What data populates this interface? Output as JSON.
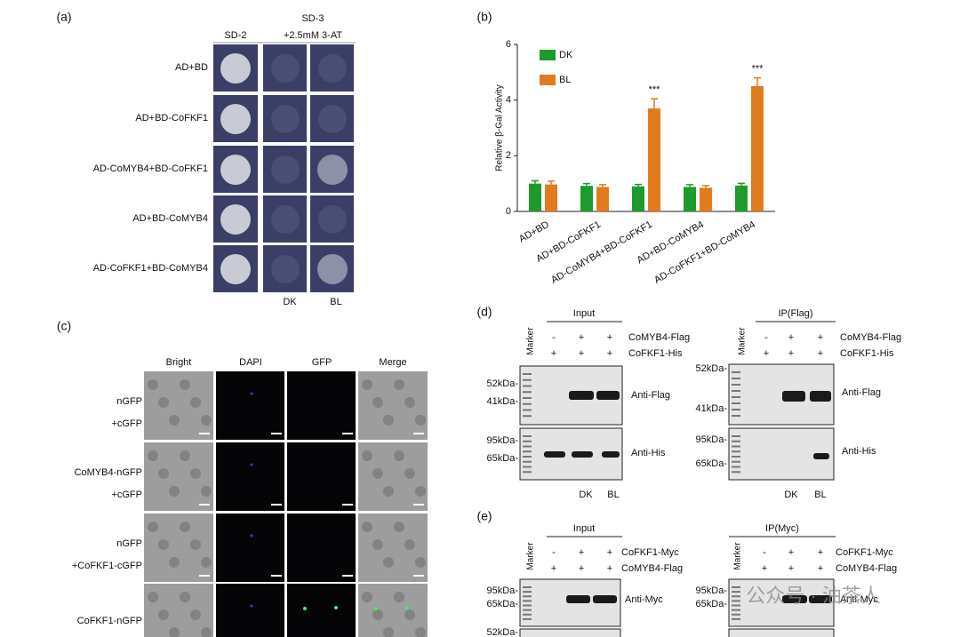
{
  "panels": {
    "a": {
      "label": "(a)",
      "columns": [
        "SD-2",
        "SD-3",
        "+2.5mM 3-AT"
      ],
      "rows": [
        "AD+BD",
        "AD+BD-CoFKF1",
        "AD-CoMYB4+BD-CoFKF1",
        "AD+BD-CoMYB4",
        "AD-CoFKF1+BD-CoMYB4"
      ],
      "footer": [
        "DK",
        "BL"
      ]
    },
    "b": {
      "label": "(b)"
    },
    "c": {
      "label": "(c)",
      "columns": [
        "Bright",
        "DAPI",
        "GFP",
        "Merge"
      ],
      "rows": [
        [
          "nGFP",
          "+cGFP"
        ],
        [
          "CoMYB4-nGFP",
          "+cGFP"
        ],
        [
          "nGFP",
          "+CoFKF1-cGFP"
        ],
        [
          "CoFKF1-nGFP"
        ]
      ]
    },
    "d": {
      "label": "(d)",
      "input": {
        "title": "Input",
        "marker": "Marker",
        "signs": [
          [
            "-",
            "+",
            "+"
          ],
          [
            "+",
            "+",
            "+"
          ]
        ],
        "rows": [
          "CoMYB4-Flag",
          "CoFKF1-His"
        ],
        "mw": [
          "52kDa-",
          "41kDa-",
          "95kDa-",
          "65kDa-"
        ],
        "blots": [
          "Anti-Flag",
          "Anti-His"
        ],
        "footer": [
          "DK",
          "BL"
        ]
      },
      "ip": {
        "title": "IP(Flag)",
        "marker": "Marker",
        "signs": [
          [
            "-",
            "+",
            "+"
          ],
          [
            "+",
            "+",
            "+"
          ]
        ],
        "rows": [
          "CoMYB4-Flag",
          "CoFKF1-His"
        ],
        "mw": [
          "52kDa-",
          "41kDa-",
          "95kDa-",
          "65kDa-"
        ],
        "blots": [
          "Anti-Flag",
          "Anti-His"
        ],
        "footer": [
          "DK",
          "BL"
        ]
      }
    },
    "e": {
      "label": "(e)",
      "input": {
        "title": "Input",
        "marker": "Marker",
        "signs": [
          [
            "-",
            "+",
            "+"
          ],
          [
            "+",
            "+",
            "+"
          ]
        ],
        "rows": [
          "CoFKF1-Myc",
          "CoMYB4-Flag"
        ],
        "mw": [
          "95kDa-",
          "65kDa-",
          "52kDa-"
        ],
        "blots": [
          "Anti-Myc"
        ]
      },
      "ip": {
        "title": "IP(Myc)",
        "marker": "Marker",
        "signs": [
          [
            "-",
            "+",
            "+"
          ],
          [
            "+",
            "+",
            "+"
          ]
        ],
        "rows": [
          "CoFKF1-Myc",
          "CoMYB4-Flag"
        ],
        "mw": [
          "95kDa-",
          "65kDa-"
        ],
        "blots": [
          "Anti-Myc"
        ]
      }
    },
    "watermark": "公众号 · 油茶人"
  },
  "chart_data": {
    "type": "bar",
    "y_label": "Relative β-Gal Activity",
    "categories": [
      "AD+BD",
      "AD+BD-CoFKF1",
      "AD-CoMYB4+BD-CoFKF1",
      "AD+BD-CoMYB4",
      "AD-CoFKF1+BD-CoMYB4"
    ],
    "series": [
      {
        "name": "DK",
        "color": "#1f9a2e",
        "values": [
          1.0,
          0.92,
          0.9,
          0.88,
          0.93
        ],
        "errors": [
          0.1,
          0.08,
          0.07,
          0.08,
          0.08
        ]
      },
      {
        "name": "BL",
        "color": "#e07c1e",
        "values": [
          0.97,
          0.88,
          3.7,
          0.85,
          4.5
        ],
        "errors": [
          0.12,
          0.08,
          0.35,
          0.08,
          0.3
        ],
        "significance": [
          null,
          null,
          "***",
          null,
          "***"
        ]
      }
    ],
    "ylim": [
      0,
      6
    ],
    "yticks": [
      0,
      2,
      4,
      6
    ],
    "legend": "top-left"
  }
}
